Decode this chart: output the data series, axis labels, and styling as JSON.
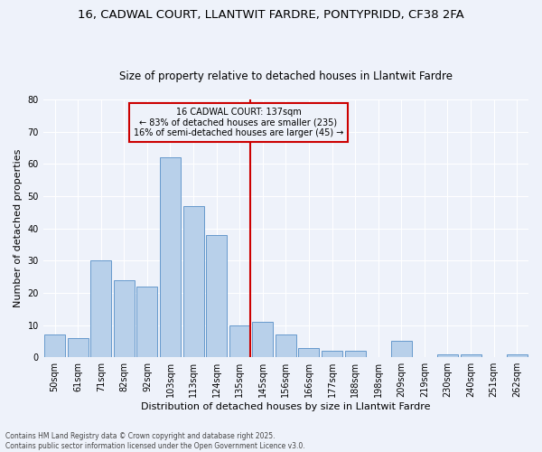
{
  "title_line1": "16, CADWAL COURT, LLANTWIT FARDRE, PONTYPRIDD, CF38 2FA",
  "title_line2": "Size of property relative to detached houses in Llantwit Fardre",
  "xlabel": "Distribution of detached houses by size in Llantwit Fardre",
  "ylabel": "Number of detached properties",
  "categories": [
    "50sqm",
    "61sqm",
    "71sqm",
    "82sqm",
    "92sqm",
    "103sqm",
    "113sqm",
    "124sqm",
    "135sqm",
    "145sqm",
    "156sqm",
    "166sqm",
    "177sqm",
    "188sqm",
    "198sqm",
    "209sqm",
    "219sqm",
    "230sqm",
    "240sqm",
    "251sqm",
    "262sqm"
  ],
  "values": [
    7,
    6,
    30,
    24,
    22,
    62,
    47,
    38,
    10,
    11,
    7,
    3,
    2,
    2,
    0,
    5,
    0,
    1,
    1,
    0,
    1
  ],
  "bar_color": "#b8d0ea",
  "bar_edge_color": "#6699cc",
  "vline_x_index": 8,
  "vline_color": "#cc0000",
  "annotation_text": "16 CADWAL COURT: 137sqm\n← 83% of detached houses are smaller (235)\n16% of semi-detached houses are larger (45) →",
  "annotation_box_edge_color": "#cc0000",
  "annotation_box_face_color": "#eef2fa",
  "ylim": [
    0,
    80
  ],
  "yticks": [
    0,
    10,
    20,
    30,
    40,
    50,
    60,
    70,
    80
  ],
  "background_color": "#eef2fa",
  "grid_color": "#ffffff",
  "footer_text": "Contains HM Land Registry data © Crown copyright and database right 2025.\nContains public sector information licensed under the Open Government Licence v3.0.",
  "title_fontsize": 9.5,
  "subtitle_fontsize": 8.5,
  "axis_label_fontsize": 8,
  "tick_fontsize": 7,
  "annotation_fontsize": 7,
  "footer_fontsize": 5.5
}
